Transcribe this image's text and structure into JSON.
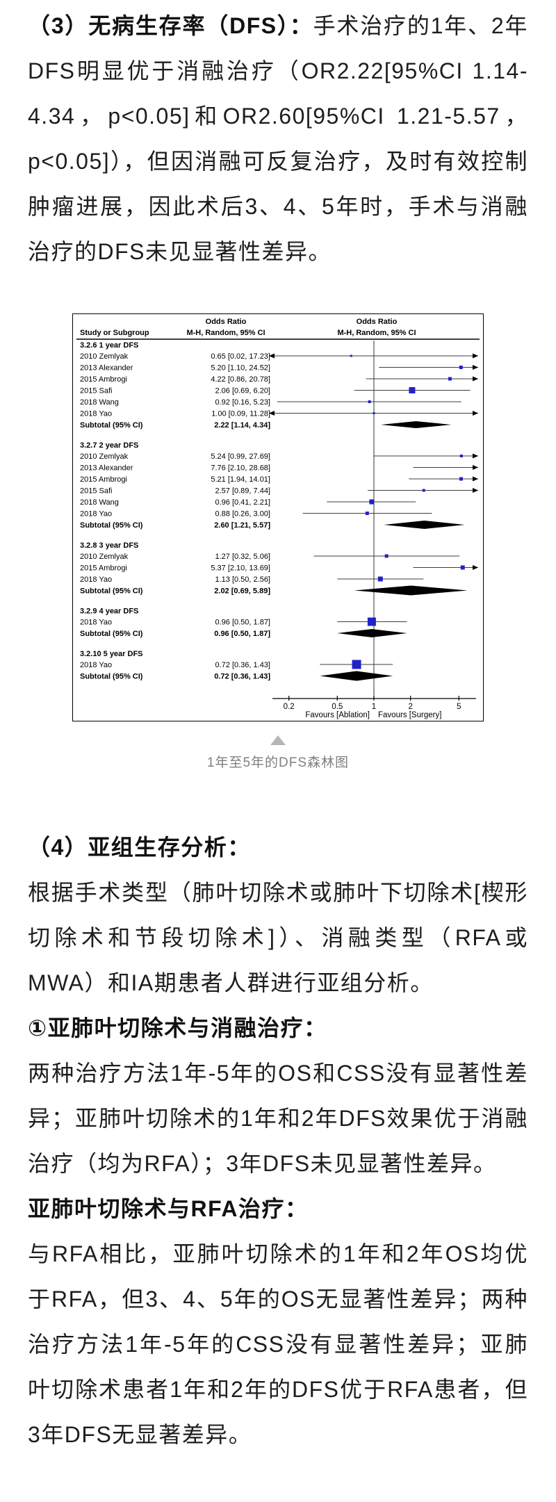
{
  "content": {
    "p3_lead": "（3）无病生存率（DFS）：",
    "p3_text": "手术治疗的1年、2年DFS明显优于消融治疗（OR2.22[95%CI 1.14-4.34，p<0.05]和OR2.60[95%CI 1.21-5.57，p<0.05]），但因消融可反复治疗，及时有效控制肿瘤进展，因此术后3、4、5年时，手术与消融治疗的DFS未见显著性差异。",
    "h4": "（4）亚组生存分析：",
    "p4": "根据手术类型（肺叶切除术或肺叶下切除术[楔形切除术和节段切除术]）、消融类型（RFA或MWA）和IA期患者人群进行亚组分析。",
    "h5": "①亚肺叶切除术与消融治疗：",
    "p5": "两种治疗方法1年-5年的OS和CSS没有显著性差异；亚肺叶切除术的1年和2年DFS效果优于消融治疗（均为RFA）；3年DFS未见显著性差异。",
    "h6": "亚肺叶切除术与RFA治疗：",
    "p6": "与RFA相比，亚肺叶切除术的1年和2年OS均优于RFA，但3、4、5年的OS无显著性差异；两种治疗方法1年-5年的CSS没有显著性差异；亚肺叶切除术患者1年和2年的DFS优于RFA患者，但3年DFS无显著差异。"
  },
  "figure": {
    "caption": "1年至5年的DFS森林图",
    "expand_icon": "triangle-up-icon"
  },
  "chart_data": {
    "type": "forest",
    "col_headers": {
      "study": "Study or Subgroup",
      "left_title": "Odds Ratio",
      "left_sub": "M-H, Random, 95% CI",
      "right_title": "Odds Ratio",
      "right_sub": "M-H, Random, 95% CI"
    },
    "subtotal_label": "Subtotal (95% CI)",
    "marker_color": "#2121c8",
    "axis": {
      "scale": "log",
      "ticks": [
        0.2,
        0.5,
        1,
        2,
        5
      ],
      "plot_min": 0.137,
      "plot_max": 7.2,
      "label_left": "Favours [Ablation]",
      "label_right": "Favours [Surgery]"
    },
    "groups": [
      {
        "label": "3.2.6 1 year DFS",
        "studies": [
          {
            "name": "2010 Zemlyak",
            "or": 0.65,
            "lo": 0.02,
            "hi": 17.23,
            "w": 3
          },
          {
            "name": "2013 Alexander",
            "or": 5.2,
            "lo": 1.1,
            "hi": 24.52,
            "w": 5
          },
          {
            "name": "2015 Ambrogi",
            "or": 4.22,
            "lo": 0.86,
            "hi": 20.78,
            "w": 5
          },
          {
            "name": "2015 Safi",
            "or": 2.06,
            "lo": 0.69,
            "hi": 6.2,
            "w": 9
          },
          {
            "name": "2018 Wang",
            "or": 0.92,
            "lo": 0.16,
            "hi": 5.23,
            "w": 4
          },
          {
            "name": "2018 Yao",
            "or": 1.0,
            "lo": 0.09,
            "hi": 11.28,
            "w": 3
          }
        ],
        "subtotal": {
          "or": 2.22,
          "lo": 1.14,
          "hi": 4.34,
          "dh": 5
        }
      },
      {
        "label": "3.2.7 2 year DFS",
        "studies": [
          {
            "name": "2010 Zemlyak",
            "or": 5.24,
            "lo": 0.99,
            "hi": 27.69,
            "w": 4
          },
          {
            "name": "2013 Alexander",
            "or": 7.76,
            "lo": 2.1,
            "hi": 28.68,
            "w": 4
          },
          {
            "name": "2015 Ambrogi",
            "or": 5.21,
            "lo": 1.94,
            "hi": 14.01,
            "w": 5
          },
          {
            "name": "2015 Safi",
            "or": 2.57,
            "lo": 0.89,
            "hi": 7.44,
            "w": 4
          },
          {
            "name": "2018 Wang",
            "or": 0.96,
            "lo": 0.41,
            "hi": 2.21,
            "w": 7
          },
          {
            "name": "2018 Yao",
            "or": 0.88,
            "lo": 0.26,
            "hi": 3.0,
            "w": 5
          }
        ],
        "subtotal": {
          "or": 2.6,
          "lo": 1.21,
          "hi": 5.57,
          "dh": 6
        }
      },
      {
        "label": "3.2.8 3 year DFS",
        "studies": [
          {
            "name": "2010 Zemlyak",
            "or": 1.27,
            "lo": 0.32,
            "hi": 5.06,
            "w": 5
          },
          {
            "name": "2015 Ambrogi",
            "or": 5.37,
            "lo": 2.1,
            "hi": 13.69,
            "w": 6
          },
          {
            "name": "2018 Yao",
            "or": 1.13,
            "lo": 0.5,
            "hi": 2.56,
            "w": 7
          }
        ],
        "subtotal": {
          "or": 2.02,
          "lo": 0.69,
          "hi": 5.89,
          "dh": 7
        }
      },
      {
        "label": "3.2.9 4 year DFS",
        "studies": [
          {
            "name": "2018 Yao",
            "or": 0.96,
            "lo": 0.5,
            "hi": 1.87,
            "w": 12
          }
        ],
        "subtotal": {
          "or": 0.96,
          "lo": 0.5,
          "hi": 1.87,
          "dh": 6
        }
      },
      {
        "label": "3.2.10 5 year DFS",
        "studies": [
          {
            "name": "2018 Yao",
            "or": 0.72,
            "lo": 0.36,
            "hi": 1.43,
            "w": 13
          }
        ],
        "subtotal": {
          "or": 0.72,
          "lo": 0.36,
          "hi": 1.43,
          "dh": 7
        }
      }
    ]
  }
}
